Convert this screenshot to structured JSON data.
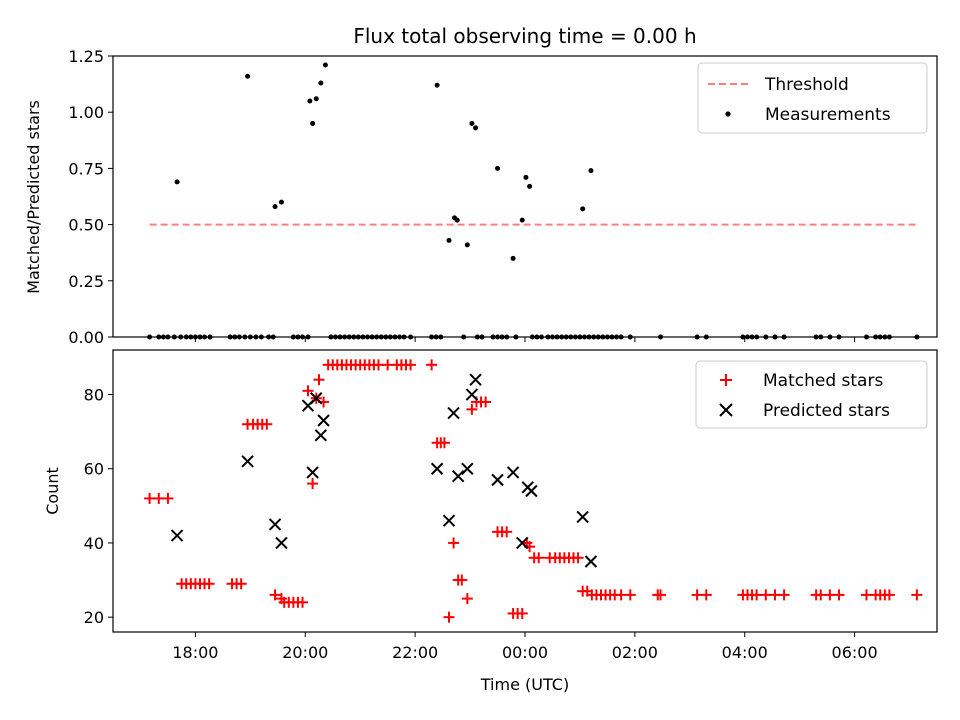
{
  "title": "Flux total observing time = 0.00 h",
  "chart_data": [
    {
      "type": "scatter",
      "ylabel": "Matched/Predicted stars",
      "xlabel": "",
      "ylim": [
        0,
        1.25
      ],
      "yticks": [
        "0.00",
        "0.25",
        "0.50",
        "0.75",
        "1.00",
        "1.25"
      ],
      "grid": false,
      "legend": {
        "position": "top-right",
        "entries": [
          "Threshold",
          "Measurements"
        ]
      },
      "threshold": {
        "name": "Threshold",
        "y": 0.5,
        "x": [
          "17:10",
          "07:10"
        ],
        "color": "#ff7f7f",
        "style": "dashed"
      },
      "series": [
        {
          "name": "Measurements",
          "marker": "dot",
          "color": "#000000",
          "points": [
            [
              "17:40",
              0.69
            ],
            [
              "18:57",
              1.16
            ],
            [
              "19:27",
              0.58
            ],
            [
              "19:34",
              0.6
            ],
            [
              "20:05",
              1.05
            ],
            [
              "20:08",
              0.95
            ],
            [
              "20:12",
              1.06
            ],
            [
              "20:17",
              1.13
            ],
            [
              "20:22",
              1.21
            ],
            [
              "22:24",
              1.12
            ],
            [
              "22:37",
              0.43
            ],
            [
              "22:43",
              0.53
            ],
            [
              "22:46",
              0.52
            ],
            [
              "22:57",
              0.41
            ],
            [
              "23:02",
              0.95
            ],
            [
              "23:06",
              0.93
            ],
            [
              "23:30",
              0.75
            ],
            [
              "23:47",
              0.35
            ],
            [
              "23:57",
              0.52
            ],
            [
              "00:01",
              0.71
            ],
            [
              "00:05",
              0.67
            ],
            [
              "01:03",
              0.57
            ],
            [
              "01:12",
              0.74
            ],
            [
              "17:10",
              0
            ],
            [
              "17:20",
              0
            ],
            [
              "17:25",
              0
            ],
            [
              "17:30",
              0
            ],
            [
              "17:37",
              0
            ],
            [
              "17:44",
              0
            ],
            [
              "17:50",
              0
            ],
            [
              "17:55",
              0
            ],
            [
              "18:00",
              0
            ],
            [
              "18:05",
              0
            ],
            [
              "18:10",
              0
            ],
            [
              "18:16",
              0
            ],
            [
              "18:38",
              0
            ],
            [
              "18:43",
              0
            ],
            [
              "18:48",
              0
            ],
            [
              "18:54",
              0
            ],
            [
              "19:00",
              0
            ],
            [
              "19:06",
              0
            ],
            [
              "19:12",
              0
            ],
            [
              "19:20",
              0
            ],
            [
              "19:25",
              0
            ],
            [
              "19:47",
              0
            ],
            [
              "19:52",
              0
            ],
            [
              "19:57",
              0
            ],
            [
              "20:03",
              0
            ],
            [
              "20:28",
              0
            ],
            [
              "20:33",
              0
            ],
            [
              "20:38",
              0
            ],
            [
              "20:43",
              0
            ],
            [
              "20:48",
              0
            ],
            [
              "20:53",
              0
            ],
            [
              "20:58",
              0
            ],
            [
              "21:03",
              0
            ],
            [
              "21:08",
              0
            ],
            [
              "21:13",
              0
            ],
            [
              "21:18",
              0
            ],
            [
              "21:23",
              0
            ],
            [
              "21:28",
              0
            ],
            [
              "21:33",
              0
            ],
            [
              "21:38",
              0
            ],
            [
              "21:43",
              0
            ],
            [
              "21:48",
              0
            ],
            [
              "21:55",
              0
            ],
            [
              "22:18",
              0
            ],
            [
              "22:23",
              0
            ],
            [
              "22:28",
              0
            ],
            [
              "22:53",
              0
            ],
            [
              "23:08",
              0
            ],
            [
              "23:13",
              0
            ],
            [
              "23:25",
              0
            ],
            [
              "23:30",
              0
            ],
            [
              "23:35",
              0
            ],
            [
              "23:40",
              0
            ],
            [
              "23:50",
              0
            ],
            [
              "00:08",
              0
            ],
            [
              "00:13",
              0
            ],
            [
              "00:18",
              0
            ],
            [
              "00:25",
              0
            ],
            [
              "00:30",
              0
            ],
            [
              "00:35",
              0
            ],
            [
              "00:40",
              0
            ],
            [
              "00:45",
              0
            ],
            [
              "00:50",
              0
            ],
            [
              "00:55",
              0
            ],
            [
              "01:00",
              0
            ],
            [
              "01:05",
              0
            ],
            [
              "01:10",
              0
            ],
            [
              "01:15",
              0
            ],
            [
              "01:20",
              0
            ],
            [
              "01:25",
              0
            ],
            [
              "01:30",
              0
            ],
            [
              "01:35",
              0
            ],
            [
              "01:40",
              0
            ],
            [
              "01:45",
              0
            ],
            [
              "01:55",
              0
            ],
            [
              "02:28",
              0
            ],
            [
              "03:08",
              0
            ],
            [
              "03:18",
              0
            ],
            [
              "03:58",
              0
            ],
            [
              "04:03",
              0
            ],
            [
              "04:08",
              0
            ],
            [
              "04:13",
              0
            ],
            [
              "04:23",
              0
            ],
            [
              "04:33",
              0
            ],
            [
              "04:43",
              0
            ],
            [
              "05:18",
              0
            ],
            [
              "05:23",
              0
            ],
            [
              "05:33",
              0
            ],
            [
              "05:43",
              0
            ],
            [
              "06:13",
              0
            ],
            [
              "06:23",
              0
            ],
            [
              "06:28",
              0
            ],
            [
              "06:33",
              0
            ],
            [
              "06:38",
              0
            ],
            [
              "07:08",
              0
            ]
          ]
        }
      ]
    },
    {
      "type": "scatter",
      "ylabel": "Count",
      "xlabel": "Time (UTC)",
      "xlim": [
        "16:30",
        "07:30"
      ],
      "xticks": [
        "18:00",
        "20:00",
        "22:00",
        "00:00",
        "02:00",
        "04:00",
        "06:00"
      ],
      "ylim": [
        16,
        92
      ],
      "yticks": [
        "20",
        "40",
        "60",
        "80"
      ],
      "grid": false,
      "legend": {
        "position": "top-right",
        "entries": [
          "Matched stars",
          "Predicted stars"
        ]
      },
      "series": [
        {
          "name": "Matched stars",
          "marker": "plus",
          "color": "#ff0000",
          "points": [
            [
              "17:10",
              52
            ],
            [
              "17:20",
              52
            ],
            [
              "17:30",
              52
            ],
            [
              "17:45",
              29
            ],
            [
              "17:50",
              29
            ],
            [
              "17:55",
              29
            ],
            [
              "18:00",
              29
            ],
            [
              "18:05",
              29
            ],
            [
              "18:10",
              29
            ],
            [
              "18:15",
              29
            ],
            [
              "18:40",
              29
            ],
            [
              "18:45",
              29
            ],
            [
              "18:50",
              29
            ],
            [
              "18:57",
              72
            ],
            [
              "19:03",
              72
            ],
            [
              "19:08",
              72
            ],
            [
              "19:13",
              72
            ],
            [
              "19:18",
              72
            ],
            [
              "19:27",
              26
            ],
            [
              "19:34",
              25
            ],
            [
              "19:37",
              24
            ],
            [
              "19:42",
              24
            ],
            [
              "19:47",
              24
            ],
            [
              "19:52",
              24
            ],
            [
              "19:57",
              24
            ],
            [
              "20:03",
              81
            ],
            [
              "20:08",
              56
            ],
            [
              "20:12",
              79
            ],
            [
              "20:15",
              84
            ],
            [
              "20:20",
              78
            ],
            [
              "20:25",
              88
            ],
            [
              "20:30",
              88
            ],
            [
              "20:35",
              88
            ],
            [
              "20:40",
              88
            ],
            [
              "20:45",
              88
            ],
            [
              "20:50",
              88
            ],
            [
              "20:55",
              88
            ],
            [
              "21:00",
              88
            ],
            [
              "21:05",
              88
            ],
            [
              "21:10",
              88
            ],
            [
              "21:15",
              88
            ],
            [
              "21:20",
              88
            ],
            [
              "21:30",
              88
            ],
            [
              "21:40",
              88
            ],
            [
              "21:45",
              88
            ],
            [
              "21:50",
              88
            ],
            [
              "21:55",
              88
            ],
            [
              "22:18",
              88
            ],
            [
              "22:24",
              67
            ],
            [
              "22:28",
              67
            ],
            [
              "22:32",
              67
            ],
            [
              "22:37",
              20
            ],
            [
              "22:42",
              40
            ],
            [
              "22:47",
              30
            ],
            [
              "22:51",
              30
            ],
            [
              "22:57",
              25
            ],
            [
              "23:02",
              76
            ],
            [
              "23:07",
              78
            ],
            [
              "23:12",
              78
            ],
            [
              "23:17",
              78
            ],
            [
              "23:30",
              43
            ],
            [
              "23:35",
              43
            ],
            [
              "23:40",
              43
            ],
            [
              "23:47",
              21
            ],
            [
              "23:52",
              21
            ],
            [
              "23:57",
              21
            ],
            [
              "00:02",
              40
            ],
            [
              "00:05",
              39
            ],
            [
              "00:10",
              36
            ],
            [
              "00:15",
              36
            ],
            [
              "00:27",
              36
            ],
            [
              "00:33",
              36
            ],
            [
              "00:38",
              36
            ],
            [
              "00:43",
              36
            ],
            [
              "00:48",
              36
            ],
            [
              "00:53",
              36
            ],
            [
              "00:58",
              36
            ],
            [
              "01:03",
              27
            ],
            [
              "01:08",
              27
            ],
            [
              "01:13",
              26
            ],
            [
              "01:18",
              26
            ],
            [
              "01:23",
              26
            ],
            [
              "01:28",
              26
            ],
            [
              "01:33",
              26
            ],
            [
              "01:38",
              26
            ],
            [
              "01:45",
              26
            ],
            [
              "01:55",
              26
            ],
            [
              "02:25",
              26
            ],
            [
              "02:28",
              26
            ],
            [
              "03:08",
              26
            ],
            [
              "03:18",
              26
            ],
            [
              "03:58",
              26
            ],
            [
              "04:03",
              26
            ],
            [
              "04:08",
              26
            ],
            [
              "04:13",
              26
            ],
            [
              "04:23",
              26
            ],
            [
              "04:33",
              26
            ],
            [
              "04:43",
              26
            ],
            [
              "05:18",
              26
            ],
            [
              "05:23",
              26
            ],
            [
              "05:33",
              26
            ],
            [
              "05:43",
              26
            ],
            [
              "06:13",
              26
            ],
            [
              "06:23",
              26
            ],
            [
              "06:28",
              26
            ],
            [
              "06:33",
              26
            ],
            [
              "06:38",
              26
            ],
            [
              "07:08",
              26
            ]
          ]
        },
        {
          "name": "Predicted stars",
          "marker": "x",
          "color": "#000000",
          "points": [
            [
              "17:40",
              42
            ],
            [
              "18:57",
              62
            ],
            [
              "19:27",
              45
            ],
            [
              "19:34",
              40
            ],
            [
              "20:03",
              77
            ],
            [
              "20:08",
              59
            ],
            [
              "20:12",
              79
            ],
            [
              "20:17",
              69
            ],
            [
              "20:20",
              73
            ],
            [
              "22:24",
              60
            ],
            [
              "22:37",
              46
            ],
            [
              "22:42",
              75
            ],
            [
              "22:47",
              58
            ],
            [
              "22:57",
              60
            ],
            [
              "23:02",
              80
            ],
            [
              "23:06",
              84
            ],
            [
              "23:30",
              57
            ],
            [
              "23:47",
              59
            ],
            [
              "23:57",
              40
            ],
            [
              "00:03",
              55
            ],
            [
              "00:07",
              54
            ],
            [
              "01:03",
              47
            ],
            [
              "01:12",
              35
            ]
          ]
        }
      ]
    }
  ]
}
